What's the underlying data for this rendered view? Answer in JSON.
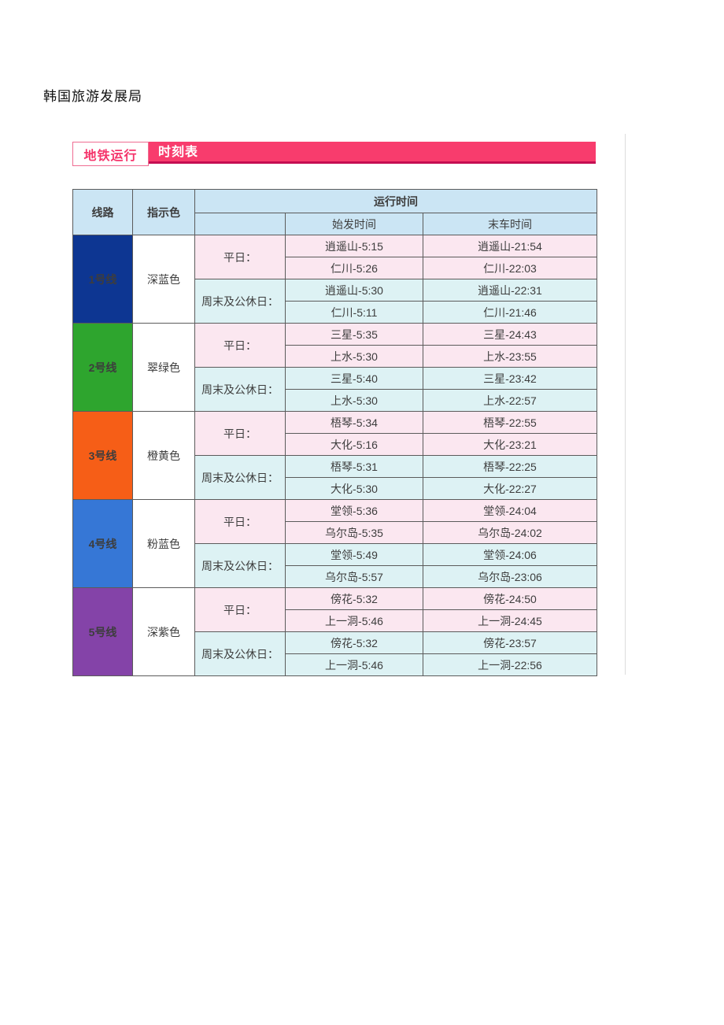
{
  "page": {
    "title": "韩国旅游发展局"
  },
  "banner": {
    "tab_label": "地铁运行",
    "title": "时刻表",
    "bg_color": "#f83c6d",
    "border_color": "#c40e52",
    "tab_text_color": "#f5346b"
  },
  "table": {
    "headers": {
      "line": "线路",
      "indicator_color": "指示色",
      "operation_time": "运行时间",
      "first_train": "始发时间",
      "last_train": "末车时间"
    },
    "day_labels": {
      "weekday": "平日：",
      "weekend": "周末及公休日："
    },
    "row_colors": {
      "weekday_bg": "#fbe7f0",
      "weekend_bg": "#ddf2f4",
      "header_bg": "#cbe5f4"
    },
    "lines": [
      {
        "name": "1号线",
        "color_name": "深蓝色",
        "line_bg": "#0d3692",
        "color_text": "#2b2bd5",
        "weekday": [
          {
            "first": "逍遥山-5:15",
            "last": "逍遥山-21:54"
          },
          {
            "first": "仁川-5:26",
            "last": "仁川-22:03"
          }
        ],
        "weekend": [
          {
            "first": "逍遥山-5:30",
            "last": "逍遥山-22:31"
          },
          {
            "first": "仁川-5:11",
            "last": "仁川-21:46"
          }
        ]
      },
      {
        "name": "2号线",
        "color_name": "翠绿色",
        "line_bg": "#2ea52e",
        "color_text": "#2fa82f",
        "weekday": [
          {
            "first": "三星-5:35",
            "last": "三星-24:43"
          },
          {
            "first": "上水-5:30",
            "last": "上水-23:55"
          }
        ],
        "weekend": [
          {
            "first": "三星-5:40",
            "last": "三星-23:42"
          },
          {
            "first": "上水-5:30",
            "last": "上水-22:57"
          }
        ]
      },
      {
        "name": "3号线",
        "color_name": "橙黄色",
        "line_bg": "#f65e17",
        "color_text": "#ff8e2b",
        "weekday": [
          {
            "first": "梧琴-5:34",
            "last": "梧琴-22:55"
          },
          {
            "first": "大化-5:16",
            "last": "大化-23:21"
          }
        ],
        "weekend": [
          {
            "first": "梧琴-5:31",
            "last": "梧琴-22:25"
          },
          {
            "first": "大化-5:30",
            "last": "大化-22:27"
          }
        ]
      },
      {
        "name": "4号线",
        "color_name": "粉蓝色",
        "line_bg": "#3677d6",
        "color_text": "#3b76dd",
        "weekday": [
          {
            "first": "堂领-5:36",
            "last": "堂领-24:04"
          },
          {
            "first": "乌尔岛-5:35",
            "last": "乌尔岛-24:02"
          }
        ],
        "weekend": [
          {
            "first": "堂领-5:49",
            "last": "堂领-24:06"
          },
          {
            "first": "乌尔岛-5:57",
            "last": "乌尔岛-23:06"
          }
        ]
      },
      {
        "name": "5号线",
        "color_name": "深紫色",
        "line_bg": "#8443a8",
        "color_text": "#a032a8",
        "weekday": [
          {
            "first": "傍花-5:32",
            "last": "傍花-24:50"
          },
          {
            "first": "上一洞-5:46",
            "last": "上一洞-24:45"
          }
        ],
        "weekend": [
          {
            "first": "傍花-5:32",
            "last": "傍花-23:57"
          },
          {
            "first": "上一洞-5:46",
            "last": "上一洞-22:56"
          }
        ]
      }
    ]
  }
}
